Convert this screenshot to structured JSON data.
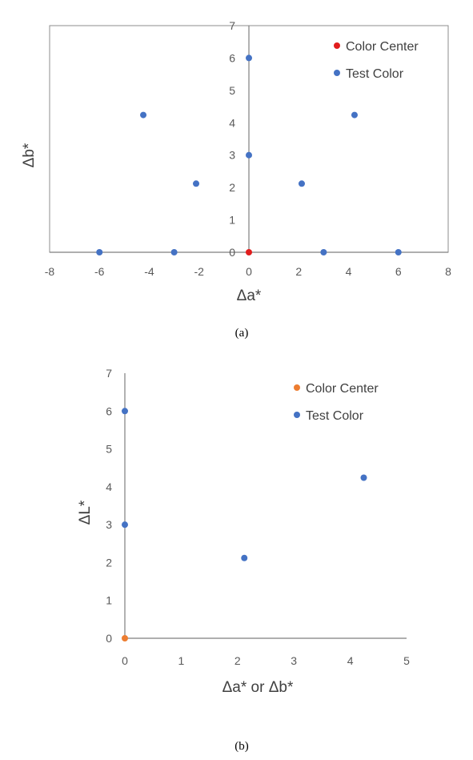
{
  "chart_data": [
    {
      "type": "scatter",
      "caption": "(a)",
      "xlabel": "Δa*",
      "ylabel": "Δb*",
      "xlim": [
        -8,
        8
      ],
      "ylim": [
        0,
        7
      ],
      "x_ticks": [
        "-8",
        "-6",
        "-4",
        "-2",
        "0",
        "2",
        "4",
        "6",
        "8"
      ],
      "y_ticks": [
        "0",
        "1",
        "2",
        "3",
        "4",
        "5",
        "6",
        "7"
      ],
      "legend_position": "top-right",
      "series": [
        {
          "name": "Color Center",
          "color": "#e11d1d",
          "points": [
            [
              0,
              0
            ]
          ]
        },
        {
          "name": "Test Color",
          "color": "#4472c4",
          "points": [
            [
              -6,
              0
            ],
            [
              -3,
              0
            ],
            [
              3,
              0
            ],
            [
              6,
              0
            ],
            [
              -2.12,
              2.12
            ],
            [
              2.12,
              2.12
            ],
            [
              -4.24,
              4.24
            ],
            [
              4.24,
              4.24
            ],
            [
              0,
              3
            ],
            [
              0,
              6
            ]
          ]
        }
      ]
    },
    {
      "type": "scatter",
      "caption": "(b)",
      "xlabel": "Δa* or Δb*",
      "ylabel": "ΔL*",
      "xlim": [
        0,
        5
      ],
      "ylim": [
        0,
        7
      ],
      "x_ticks": [
        "0",
        "1",
        "2",
        "3",
        "4",
        "5"
      ],
      "y_ticks": [
        "0",
        "1",
        "2",
        "3",
        "4",
        "5",
        "6",
        "7"
      ],
      "legend_position": "top-right",
      "series": [
        {
          "name": "Color Center",
          "color": "#ed7d31",
          "points": [
            [
              0,
              0
            ]
          ]
        },
        {
          "name": "Test Color",
          "color": "#4472c4",
          "points": [
            [
              0,
              3
            ],
            [
              0,
              6
            ],
            [
              2.12,
              2.12
            ],
            [
              4.24,
              4.24
            ]
          ]
        }
      ]
    }
  ]
}
